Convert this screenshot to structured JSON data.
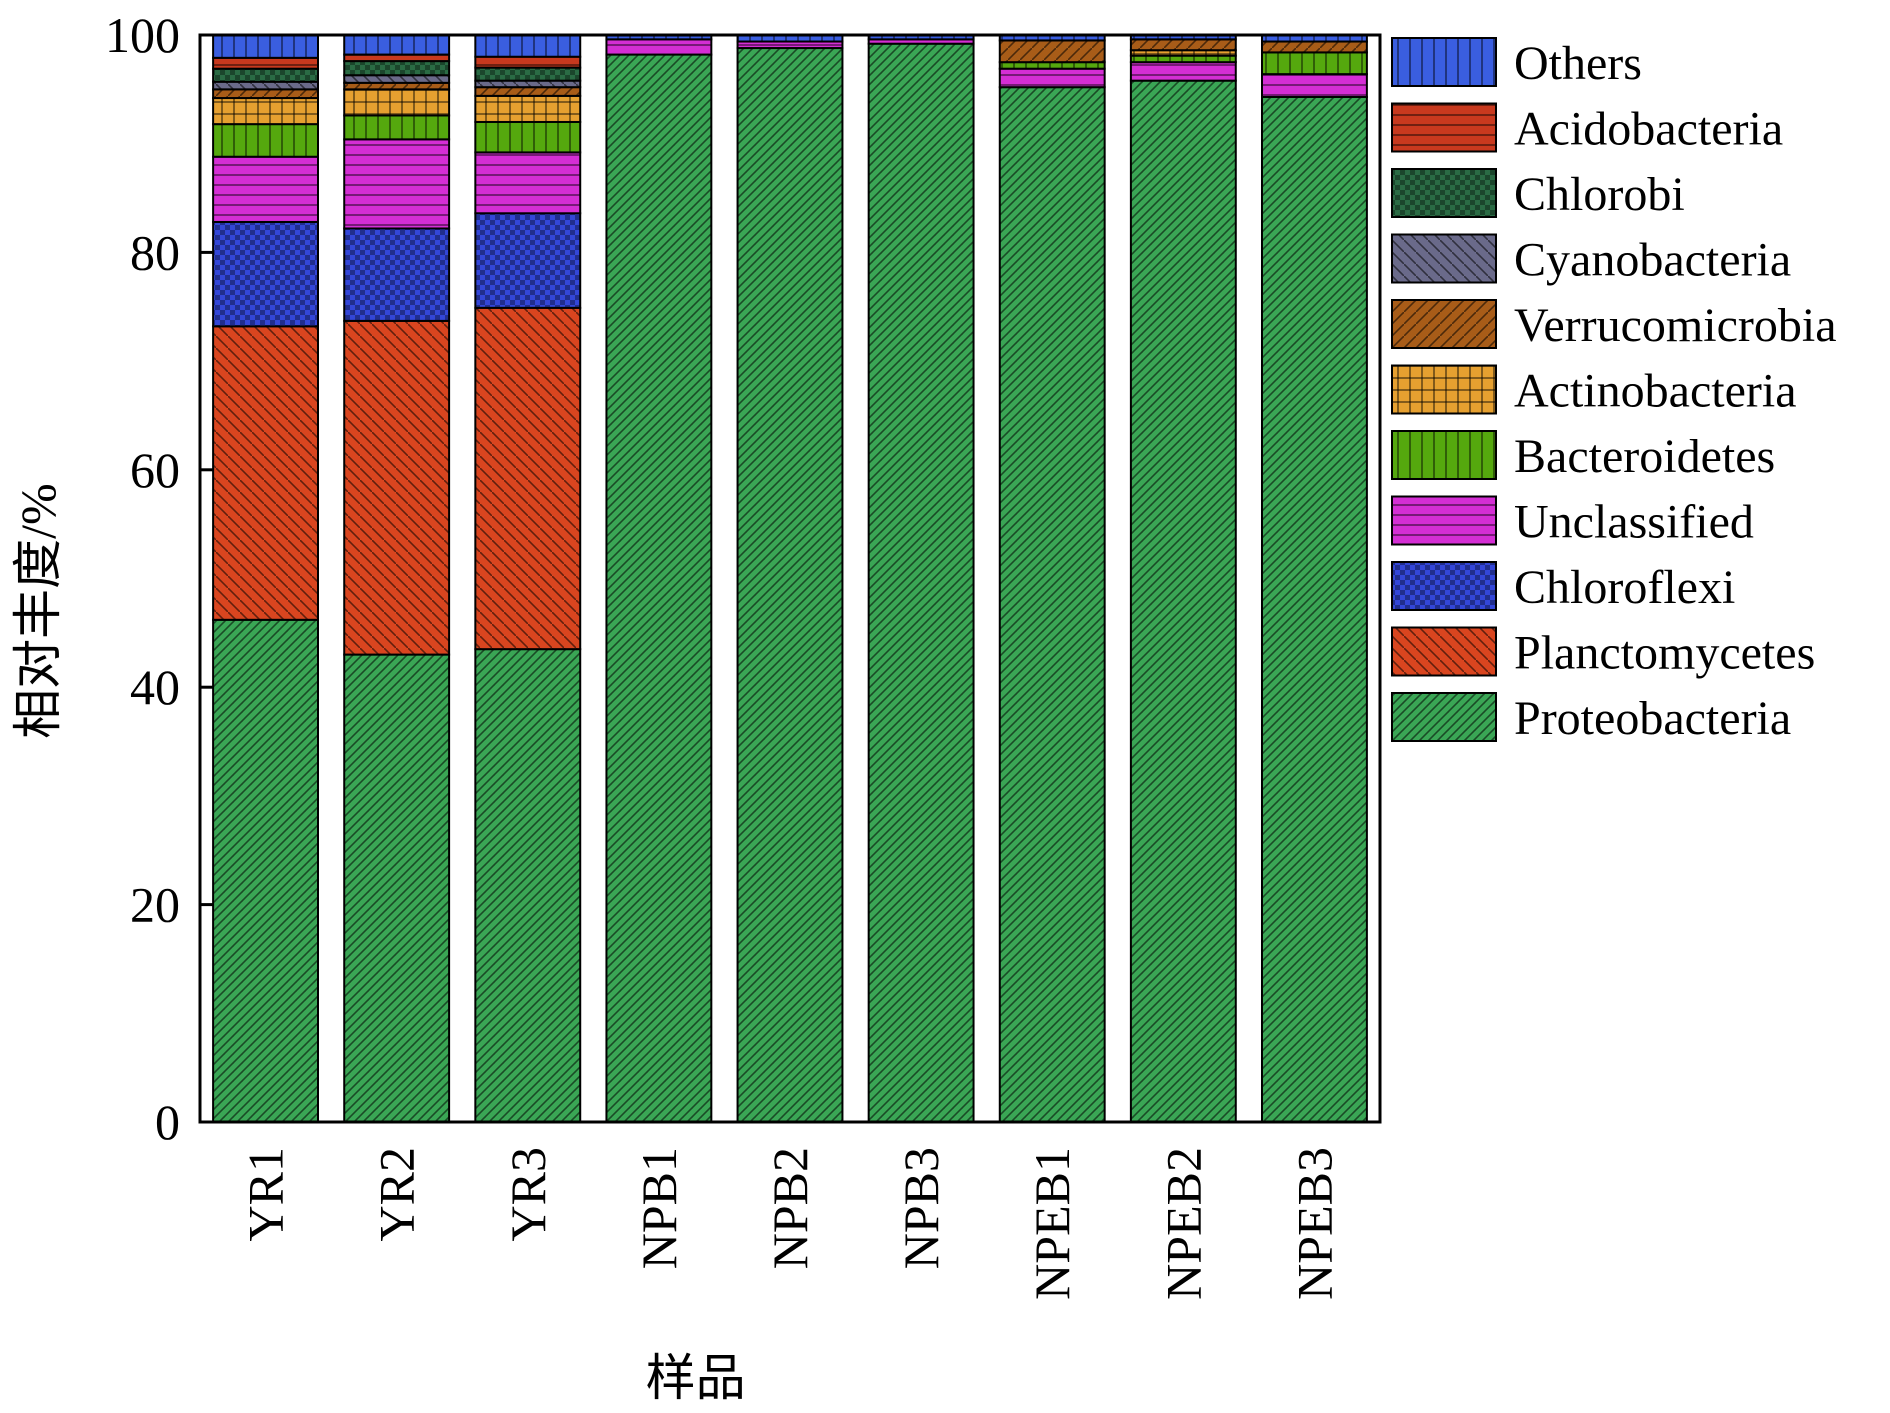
{
  "chart_data": {
    "type": "bar",
    "stacked": true,
    "xlabel": "样品",
    "ylabel": "相对丰度/%",
    "ylim": [
      0,
      100
    ],
    "yticks": [
      0,
      20,
      40,
      60,
      80,
      100
    ],
    "categories": [
      "YR1",
      "YR2",
      "YR3",
      "NPB1",
      "NPB2",
      "NPB3",
      "NPEB1",
      "NPEB2",
      "NPEB3"
    ],
    "legend_position": "right",
    "series": [
      {
        "name": "Proteobacteria",
        "color": "#3aa655",
        "pattern": "diag-fine",
        "values": [
          46.2,
          43.0,
          43.5,
          98.2,
          98.8,
          99.2,
          95.2,
          95.8,
          94.3
        ]
      },
      {
        "name": "Planctomycetes",
        "color": "#d9451f",
        "pattern": "diag-back",
        "values": [
          27.0,
          30.7,
          31.4,
          0,
          0,
          0,
          0,
          0,
          0
        ]
      },
      {
        "name": "Chloroflexi",
        "color": "#3346d8",
        "pattern": "checker",
        "values": [
          9.6,
          8.5,
          8.7,
          0,
          0,
          0,
          0,
          0,
          0
        ]
      },
      {
        "name": "Unclassified",
        "color": "#d42ed4",
        "pattern": "horizontal",
        "values": [
          6.0,
          8.2,
          5.6,
          1.4,
          0.6,
          0.4,
          1.7,
          1.7,
          2.1
        ]
      },
      {
        "name": "Bacteroidetes",
        "color": "#55a80e",
        "pattern": "vertical",
        "values": [
          3.0,
          2.2,
          2.8,
          0,
          0,
          0,
          0.6,
          0.6,
          2.0
        ]
      },
      {
        "name": "Actinobacteria",
        "color": "#e6a030",
        "pattern": "grid",
        "values": [
          2.4,
          2.4,
          2.4,
          0,
          0,
          0,
          0,
          0.5,
          0
        ]
      },
      {
        "name": "Verrucomicrobia",
        "color": "#a85c18",
        "pattern": "diag",
        "values": [
          0.8,
          0.6,
          0.8,
          0,
          0,
          0,
          2.0,
          1.0,
          1.0
        ]
      },
      {
        "name": "Cyanobacteria",
        "color": "#6a6a8a",
        "pattern": "diag-back",
        "values": [
          0.7,
          0.7,
          0.6,
          0,
          0,
          0,
          0,
          0,
          0
        ]
      },
      {
        "name": "Chlorobi",
        "color": "#2a6b44",
        "pattern": "checker",
        "values": [
          1.2,
          1.3,
          1.2,
          0,
          0,
          0,
          0,
          0,
          0
        ]
      },
      {
        "name": "Acidobacteria",
        "color": "#c8391e",
        "pattern": "horizontal",
        "values": [
          1.0,
          0.6,
          1.0,
          0,
          0,
          0,
          0,
          0,
          0
        ]
      },
      {
        "name": "Others",
        "color": "#3a5ee0",
        "pattern": "vertical",
        "values": [
          2.1,
          1.8,
          2.0,
          0.4,
          0.6,
          0.4,
          0.5,
          0.4,
          0.6
        ]
      }
    ],
    "legend_order": [
      "Others",
      "Acidobacteria",
      "Chlorobi",
      "Cyanobacteria",
      "Verrucomicrobia",
      "Actinobacteria",
      "Bacteroidetes",
      "Unclassified",
      "Chloroflexi",
      "Planctomycetes",
      "Proteobacteria"
    ]
  }
}
